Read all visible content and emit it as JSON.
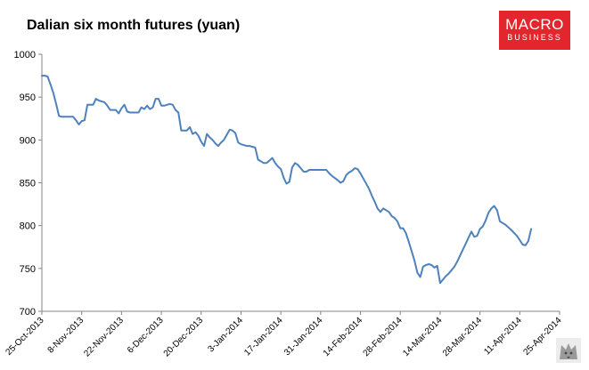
{
  "chart_data": {
    "type": "line",
    "title": "Dalian six month futures (yuan)",
    "xlabel": "",
    "ylabel": "",
    "ylim": [
      700,
      1000
    ],
    "yticks": [
      700,
      750,
      800,
      850,
      900,
      950,
      1000
    ],
    "grid": false,
    "legend": "none",
    "x_tick_labels": [
      "25-Oct-2013",
      "8-Nov-2013",
      "22-Nov-2013",
      "6-Dec-2013",
      "20-Dec-2013",
      "3-Jan-2014",
      "17-Jan-2014",
      "31-Jan-2014",
      "14-Feb-2014",
      "28-Feb-2014",
      "14-Mar-2014",
      "28-Mar-2014",
      "11-Apr-2014",
      "25-Apr-2014"
    ],
    "x_range": [
      "2013-10-25",
      "2014-04-25"
    ],
    "series": [
      {
        "color": "#4f81bd",
        "points": [
          [
            "2013-10-25",
            975
          ],
          [
            "2013-10-26",
            975
          ],
          [
            "2013-10-27",
            974
          ],
          [
            "2013-10-28",
            965
          ],
          [
            "2013-10-29",
            955
          ],
          [
            "2013-10-30",
            942
          ],
          [
            "2013-10-31",
            928
          ],
          [
            "2013-11-01",
            927
          ],
          [
            "2013-11-04",
            927
          ],
          [
            "2013-11-05",
            927
          ],
          [
            "2013-11-06",
            923
          ],
          [
            "2013-11-07",
            918
          ],
          [
            "2013-11-08",
            922
          ],
          [
            "2013-11-09",
            923
          ],
          [
            "2013-11-10",
            941
          ],
          [
            "2013-11-12",
            941
          ],
          [
            "2013-11-13",
            948
          ],
          [
            "2013-11-14",
            946
          ],
          [
            "2013-11-16",
            944
          ],
          [
            "2013-11-17",
            940
          ],
          [
            "2013-11-18",
            935
          ],
          [
            "2013-11-20",
            935
          ],
          [
            "2013-11-21",
            931
          ],
          [
            "2013-11-22",
            937
          ],
          [
            "2013-11-23",
            941
          ],
          [
            "2013-11-24",
            933
          ],
          [
            "2013-11-25",
            932
          ],
          [
            "2013-11-27",
            932
          ],
          [
            "2013-11-28",
            932
          ],
          [
            "2013-11-29",
            938
          ],
          [
            "2013-11-30",
            936
          ],
          [
            "2013-12-01",
            940
          ],
          [
            "2013-12-02",
            936
          ],
          [
            "2013-12-03",
            938
          ],
          [
            "2013-12-04",
            948
          ],
          [
            "2013-12-05",
            948
          ],
          [
            "2013-12-06",
            940
          ],
          [
            "2013-12-07",
            940
          ],
          [
            "2013-12-08",
            941
          ],
          [
            "2013-12-09",
            942
          ],
          [
            "2013-12-10",
            941
          ],
          [
            "2013-12-11",
            935
          ],
          [
            "2013-12-12",
            932
          ],
          [
            "2013-12-13",
            911
          ],
          [
            "2013-12-14",
            911
          ],
          [
            "2013-12-15",
            911
          ],
          [
            "2013-12-16",
            915
          ],
          [
            "2013-12-17",
            907
          ],
          [
            "2013-12-18",
            909
          ],
          [
            "2013-12-19",
            905
          ],
          [
            "2013-12-20",
            898
          ],
          [
            "2013-12-21",
            893
          ],
          [
            "2013-12-22",
            907
          ],
          [
            "2013-12-23",
            903
          ],
          [
            "2013-12-24",
            900
          ],
          [
            "2013-12-25",
            896
          ],
          [
            "2013-12-26",
            893
          ],
          [
            "2013-12-27",
            897
          ],
          [
            "2013-12-28",
            900
          ],
          [
            "2013-12-29",
            906
          ],
          [
            "2013-12-30",
            912
          ],
          [
            "2013-12-31",
            911
          ],
          [
            "2014-01-01",
            908
          ],
          [
            "2014-01-02",
            897
          ],
          [
            "2014-01-03",
            895
          ],
          [
            "2014-01-05",
            893
          ],
          [
            "2014-01-06",
            893
          ],
          [
            "2014-01-07",
            892
          ],
          [
            "2014-01-08",
            891
          ],
          [
            "2014-01-09",
            877
          ],
          [
            "2014-01-10",
            875
          ],
          [
            "2014-01-11",
            873
          ],
          [
            "2014-01-12",
            873
          ],
          [
            "2014-01-13",
            876
          ],
          [
            "2014-01-14",
            879
          ],
          [
            "2014-01-15",
            873
          ],
          [
            "2014-01-16",
            869
          ],
          [
            "2014-01-17",
            866
          ],
          [
            "2014-01-18",
            856
          ],
          [
            "2014-01-19",
            849
          ],
          [
            "2014-01-20",
            851
          ],
          [
            "2014-01-21",
            868
          ],
          [
            "2014-01-22",
            873
          ],
          [
            "2014-01-23",
            871
          ],
          [
            "2014-01-24",
            867
          ],
          [
            "2014-01-25",
            863
          ],
          [
            "2014-01-26",
            863
          ],
          [
            "2014-01-27",
            865
          ],
          [
            "2014-01-30",
            865
          ],
          [
            "2014-02-01",
            865
          ],
          [
            "2014-02-02",
            865
          ],
          [
            "2014-02-03",
            861
          ],
          [
            "2014-02-04",
            858
          ],
          [
            "2014-02-06",
            853
          ],
          [
            "2014-02-07",
            850
          ],
          [
            "2014-02-08",
            852
          ],
          [
            "2014-02-09",
            859
          ],
          [
            "2014-02-10",
            862
          ],
          [
            "2014-02-11",
            864
          ],
          [
            "2014-02-12",
            867
          ],
          [
            "2014-02-13",
            866
          ],
          [
            "2014-02-14",
            861
          ],
          [
            "2014-02-15",
            855
          ],
          [
            "2014-02-17",
            843
          ],
          [
            "2014-02-18",
            835
          ],
          [
            "2014-02-19",
            828
          ],
          [
            "2014-02-20",
            820
          ],
          [
            "2014-02-21",
            816
          ],
          [
            "2014-02-22",
            820
          ],
          [
            "2014-02-23",
            818
          ],
          [
            "2014-02-24",
            816
          ],
          [
            "2014-02-25",
            811
          ],
          [
            "2014-02-26",
            809
          ],
          [
            "2014-02-27",
            805
          ],
          [
            "2014-02-28",
            797
          ],
          [
            "2014-03-01",
            797
          ],
          [
            "2014-03-02",
            791
          ],
          [
            "2014-03-03",
            781
          ],
          [
            "2014-03-04",
            770
          ],
          [
            "2014-03-05",
            759
          ],
          [
            "2014-03-06",
            745
          ],
          [
            "2014-03-07",
            740
          ],
          [
            "2014-03-08",
            752
          ],
          [
            "2014-03-09",
            754
          ],
          [
            "2014-03-10",
            755
          ],
          [
            "2014-03-11",
            754
          ],
          [
            "2014-03-12",
            751
          ],
          [
            "2014-03-13",
            753
          ],
          [
            "2014-03-14",
            733
          ],
          [
            "2014-03-15",
            737
          ],
          [
            "2014-03-16",
            741
          ],
          [
            "2014-03-17",
            744
          ],
          [
            "2014-03-18",
            748
          ],
          [
            "2014-03-19",
            752
          ],
          [
            "2014-03-20",
            758
          ],
          [
            "2014-03-21",
            765
          ],
          [
            "2014-03-22",
            772
          ],
          [
            "2014-03-23",
            779
          ],
          [
            "2014-03-24",
            786
          ],
          [
            "2014-03-25",
            793
          ],
          [
            "2014-03-26",
            787
          ],
          [
            "2014-03-27",
            788
          ],
          [
            "2014-03-28",
            796
          ],
          [
            "2014-03-29",
            799
          ],
          [
            "2014-03-30",
            806
          ],
          [
            "2014-03-31",
            815
          ],
          [
            "2014-04-01",
            820
          ],
          [
            "2014-04-02",
            823
          ],
          [
            "2014-04-03",
            818
          ],
          [
            "2014-04-04",
            805
          ],
          [
            "2014-04-06",
            801
          ],
          [
            "2014-04-08",
            795
          ],
          [
            "2014-04-10",
            788
          ],
          [
            "2014-04-11",
            783
          ],
          [
            "2014-04-12",
            778
          ],
          [
            "2014-04-13",
            777
          ],
          [
            "2014-04-14",
            782
          ],
          [
            "2014-04-15",
            796
          ]
        ]
      }
    ]
  },
  "logo": {
    "line1": "MACRO",
    "line2": "BUSINESS"
  }
}
